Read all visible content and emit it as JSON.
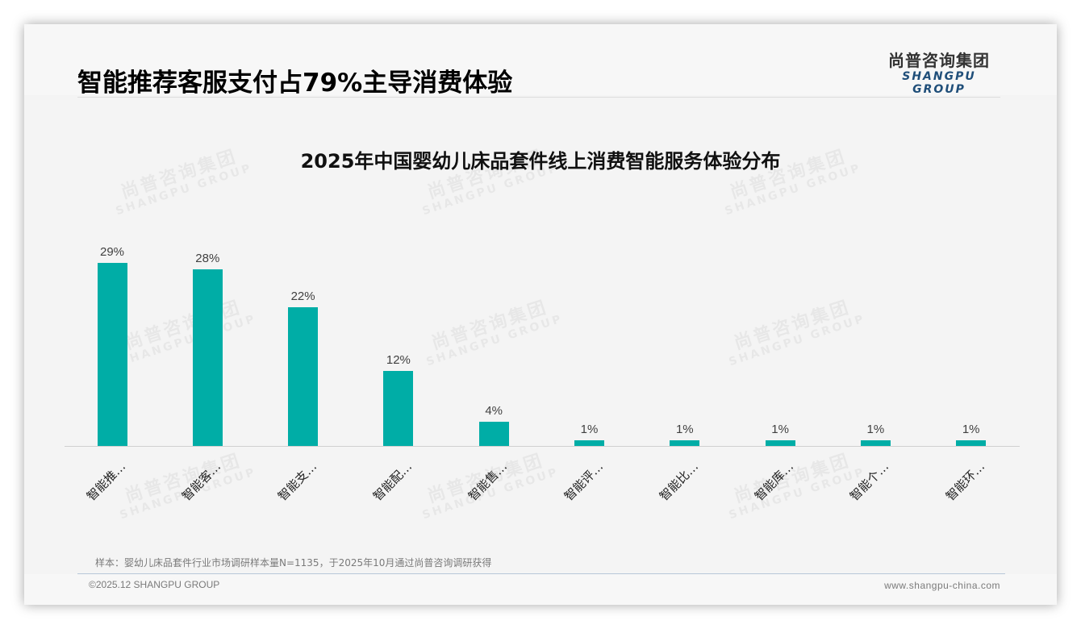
{
  "page": {
    "title": "智能推荐客服支付占79%主导消费体验"
  },
  "logo": {
    "cn": "尚普咨询集团",
    "en": "SHANGPU GROUP"
  },
  "watermark": {
    "cn": "尚普咨询集团",
    "en": "SHANGPU GROUP"
  },
  "colors": {
    "bar": "#00ada6",
    "logo_en": "#1f4e79"
  },
  "chart_data": {
    "type": "bar",
    "title": "2025年中国婴幼儿床品套件线上消费智能服务体验分布",
    "xlabel": "",
    "ylabel": "",
    "categories": [
      "智能推…",
      "智能客…",
      "智能支…",
      "智能配…",
      "智能售…",
      "智能评…",
      "智能比…",
      "智能库…",
      "智能个…",
      "智能环…"
    ],
    "values": [
      29,
      28,
      22,
      12,
      4,
      1,
      1,
      1,
      1,
      1
    ],
    "value_labels": [
      "29%",
      "28%",
      "22%",
      "12%",
      "4%",
      "1%",
      "1%",
      "1%",
      "1%",
      "1%"
    ],
    "unit": "%",
    "ylim": [
      0,
      30
    ],
    "grid": false,
    "legend": "none",
    "data_labels": true
  },
  "footer": {
    "note": "样本：婴幼儿床品套件行业市场调研样本量N=1135，于2025年10月通过尚普咨询调研获得",
    "copyright": "©2025.12 SHANGPU GROUP",
    "website": "www.shangpu-china.com"
  }
}
